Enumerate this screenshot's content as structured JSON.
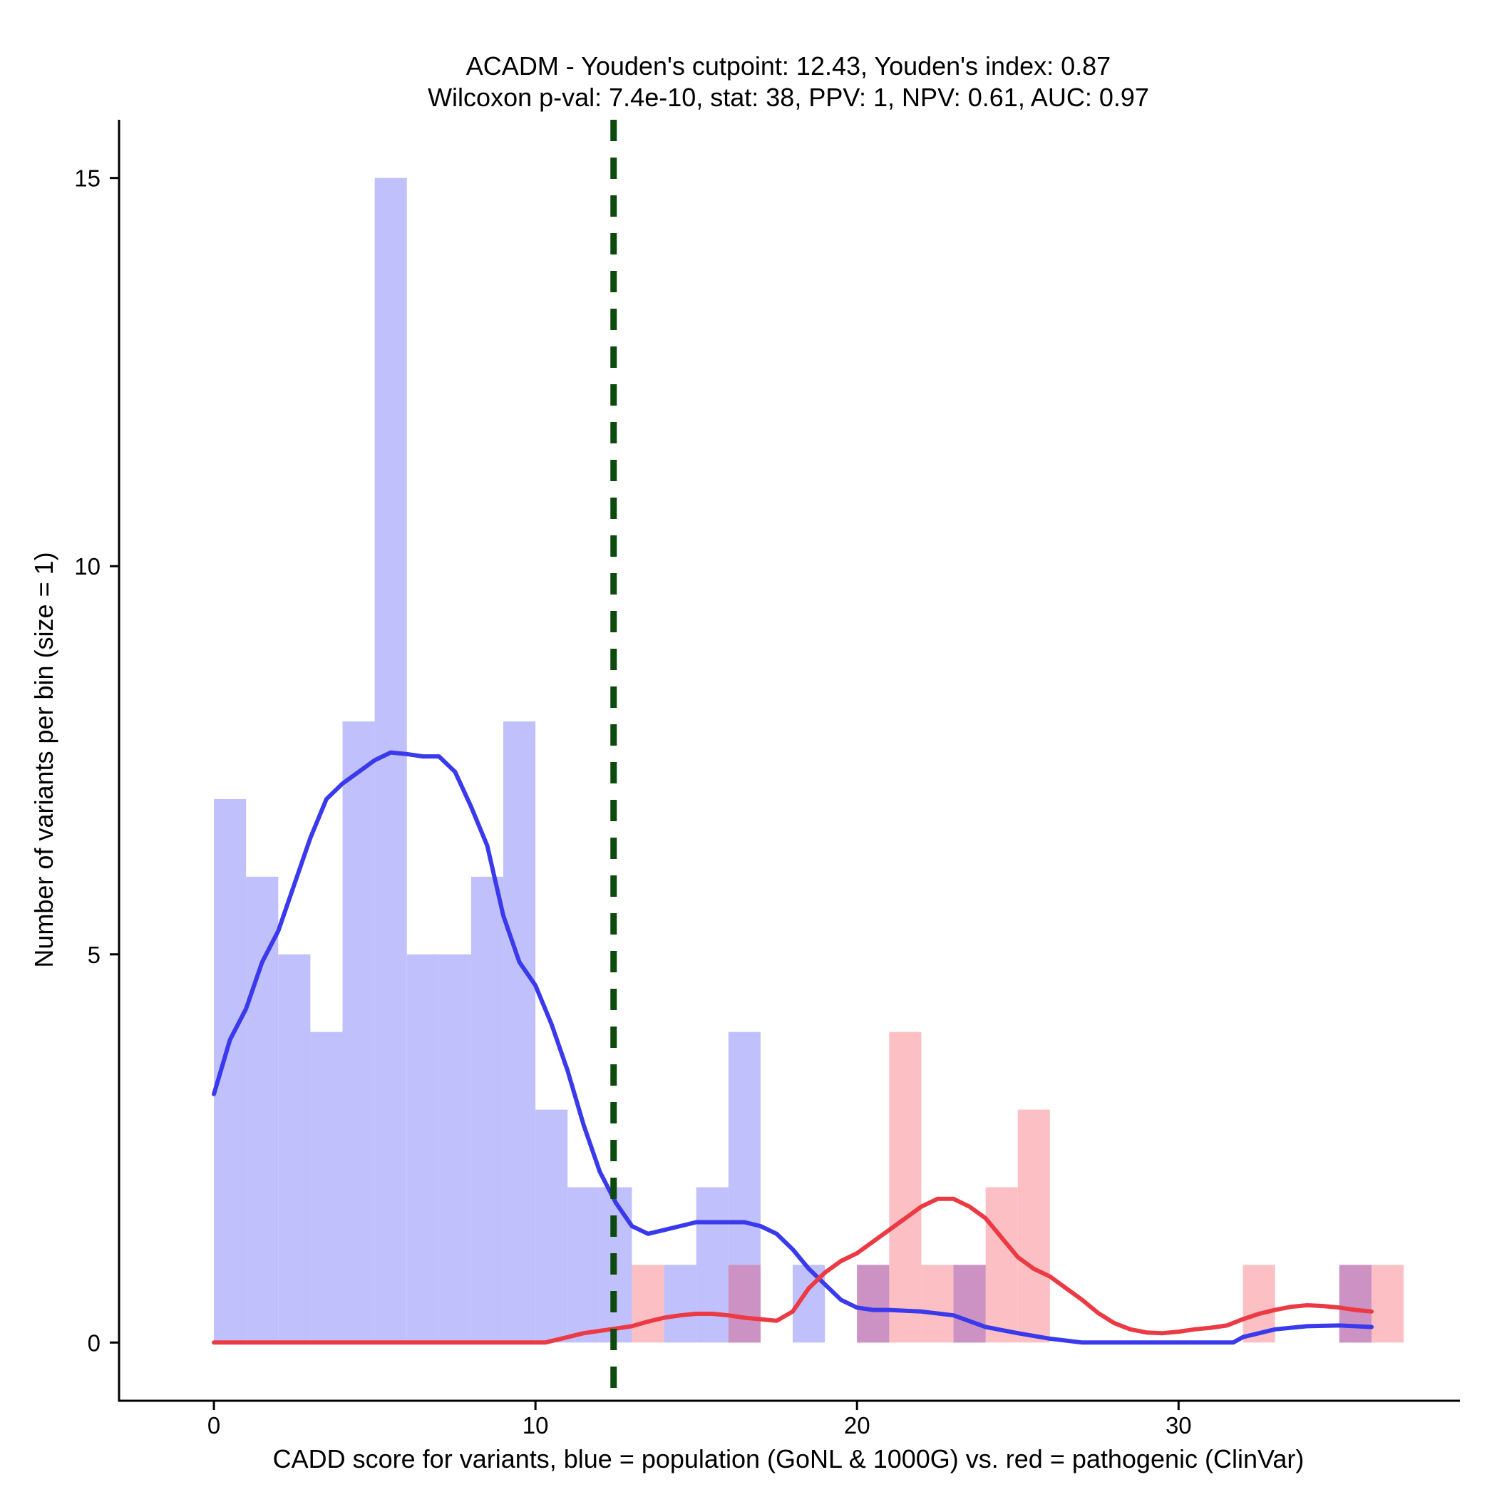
{
  "chart_data": {
    "type": "bar",
    "title_line1": "ACADM - Youden's cutpoint: 12.43, Youden's index: 0.87",
    "title_line2": "Wilcoxon p-val: 7.4e-10, stat: 38, PPV: 1, NPV: 0.61, AUC: 0.97",
    "xlabel": "CADD score for variants, blue = population (GoNL & 1000G) vs. red = pathogenic (ClinVar)",
    "ylabel": "Number of variants per bin (size = 1)",
    "xlim": [
      -2.95,
      38.75
    ],
    "ylim": [
      -0.75,
      15.75
    ],
    "xticks": [
      0,
      10,
      20,
      30
    ],
    "xtick_labels": [
      "0",
      "10",
      "20",
      "30"
    ],
    "yticks": [
      0,
      5,
      10,
      15
    ],
    "ytick_labels": [
      "0",
      "5",
      "10",
      "15"
    ],
    "bin_width": 1,
    "cutpoint": 12.43,
    "colors": {
      "population_bar": "#c0c0fc",
      "pathogenic_bar": "#fcc0c4",
      "overlap_bar": "#cc92c4",
      "population_line": "#3a3aec",
      "pathogenic_line": "#ec3a44",
      "cutpoint_line": "#0d4a0d"
    },
    "series": [
      {
        "name": "population",
        "bin_starts": [
          0,
          1,
          2,
          3,
          4,
          5,
          6,
          7,
          8,
          9,
          10,
          11,
          12,
          14,
          15,
          16,
          18,
          20,
          23,
          35
        ],
        "values": [
          7,
          6,
          5,
          4,
          8,
          15,
          5,
          5,
          6,
          8,
          3,
          2,
          2,
          1,
          2,
          4,
          1,
          1,
          1,
          1
        ]
      },
      {
        "name": "pathogenic",
        "bin_starts": [
          13,
          16,
          20,
          21,
          22,
          23,
          24,
          25,
          32,
          35,
          36
        ],
        "values": [
          1,
          1,
          1,
          4,
          1,
          1,
          2,
          3,
          1,
          1,
          1
        ]
      }
    ],
    "density_lines": [
      {
        "name": "population",
        "x": [
          0,
          0.5,
          1,
          1.5,
          2,
          2.5,
          3,
          3.5,
          4,
          4.5,
          5,
          5.5,
          6,
          6.5,
          7,
          7.5,
          8,
          8.5,
          9,
          9.5,
          10,
          10.5,
          11,
          11.5,
          12,
          12.5,
          13,
          13.5,
          14,
          14.5,
          15,
          15.5,
          16,
          16.5,
          17,
          17.5,
          18,
          18.5,
          19,
          19.5,
          20,
          20.5,
          21,
          22,
          23,
          24,
          25,
          26,
          27,
          28,
          29,
          30,
          31,
          31.7,
          32,
          33,
          34,
          35,
          36
        ],
        "y": [
          3.2,
          3.9,
          4.3,
          4.9,
          5.3,
          5.9,
          6.5,
          7.0,
          7.2,
          7.35,
          7.5,
          7.6,
          7.58,
          7.55,
          7.55,
          7.35,
          6.9,
          6.4,
          5.5,
          4.9,
          4.6,
          4.1,
          3.5,
          2.8,
          2.2,
          1.8,
          1.5,
          1.4,
          1.45,
          1.5,
          1.55,
          1.55,
          1.55,
          1.55,
          1.5,
          1.4,
          1.2,
          0.95,
          0.75,
          0.55,
          0.45,
          0.42,
          0.42,
          0.4,
          0.35,
          0.2,
          0.12,
          0.05,
          0.0,
          0.0,
          0.0,
          0.0,
          0.0,
          0.0,
          0.07,
          0.17,
          0.21,
          0.22,
          0.2
        ]
      },
      {
        "name": "pathogenic",
        "x": [
          0,
          2,
          4,
          6,
          8,
          10.3,
          10.8,
          11.5,
          12.5,
          13,
          13.5,
          14,
          14.5,
          15,
          15.5,
          16,
          16.5,
          17,
          17.5,
          18,
          18.5,
          19,
          19.5,
          20,
          20.5,
          21,
          21.5,
          22,
          22.5,
          23,
          23.5,
          24,
          24.5,
          25,
          25.5,
          26,
          26.5,
          27,
          27.5,
          28,
          28.5,
          29,
          29.5,
          30,
          30.5,
          31,
          31.5,
          32,
          32.5,
          33,
          33.5,
          34,
          34.5,
          35,
          35.5,
          36
        ],
        "y": [
          0,
          0,
          0,
          0,
          0,
          0,
          0.05,
          0.12,
          0.18,
          0.21,
          0.27,
          0.32,
          0.35,
          0.37,
          0.37,
          0.35,
          0.32,
          0.3,
          0.28,
          0.4,
          0.7,
          0.9,
          1.05,
          1.15,
          1.3,
          1.45,
          1.6,
          1.75,
          1.85,
          1.85,
          1.75,
          1.6,
          1.35,
          1.1,
          0.95,
          0.85,
          0.7,
          0.55,
          0.38,
          0.25,
          0.17,
          0.13,
          0.12,
          0.14,
          0.17,
          0.19,
          0.22,
          0.3,
          0.37,
          0.42,
          0.46,
          0.48,
          0.47,
          0.45,
          0.42,
          0.4
        ]
      }
    ]
  }
}
